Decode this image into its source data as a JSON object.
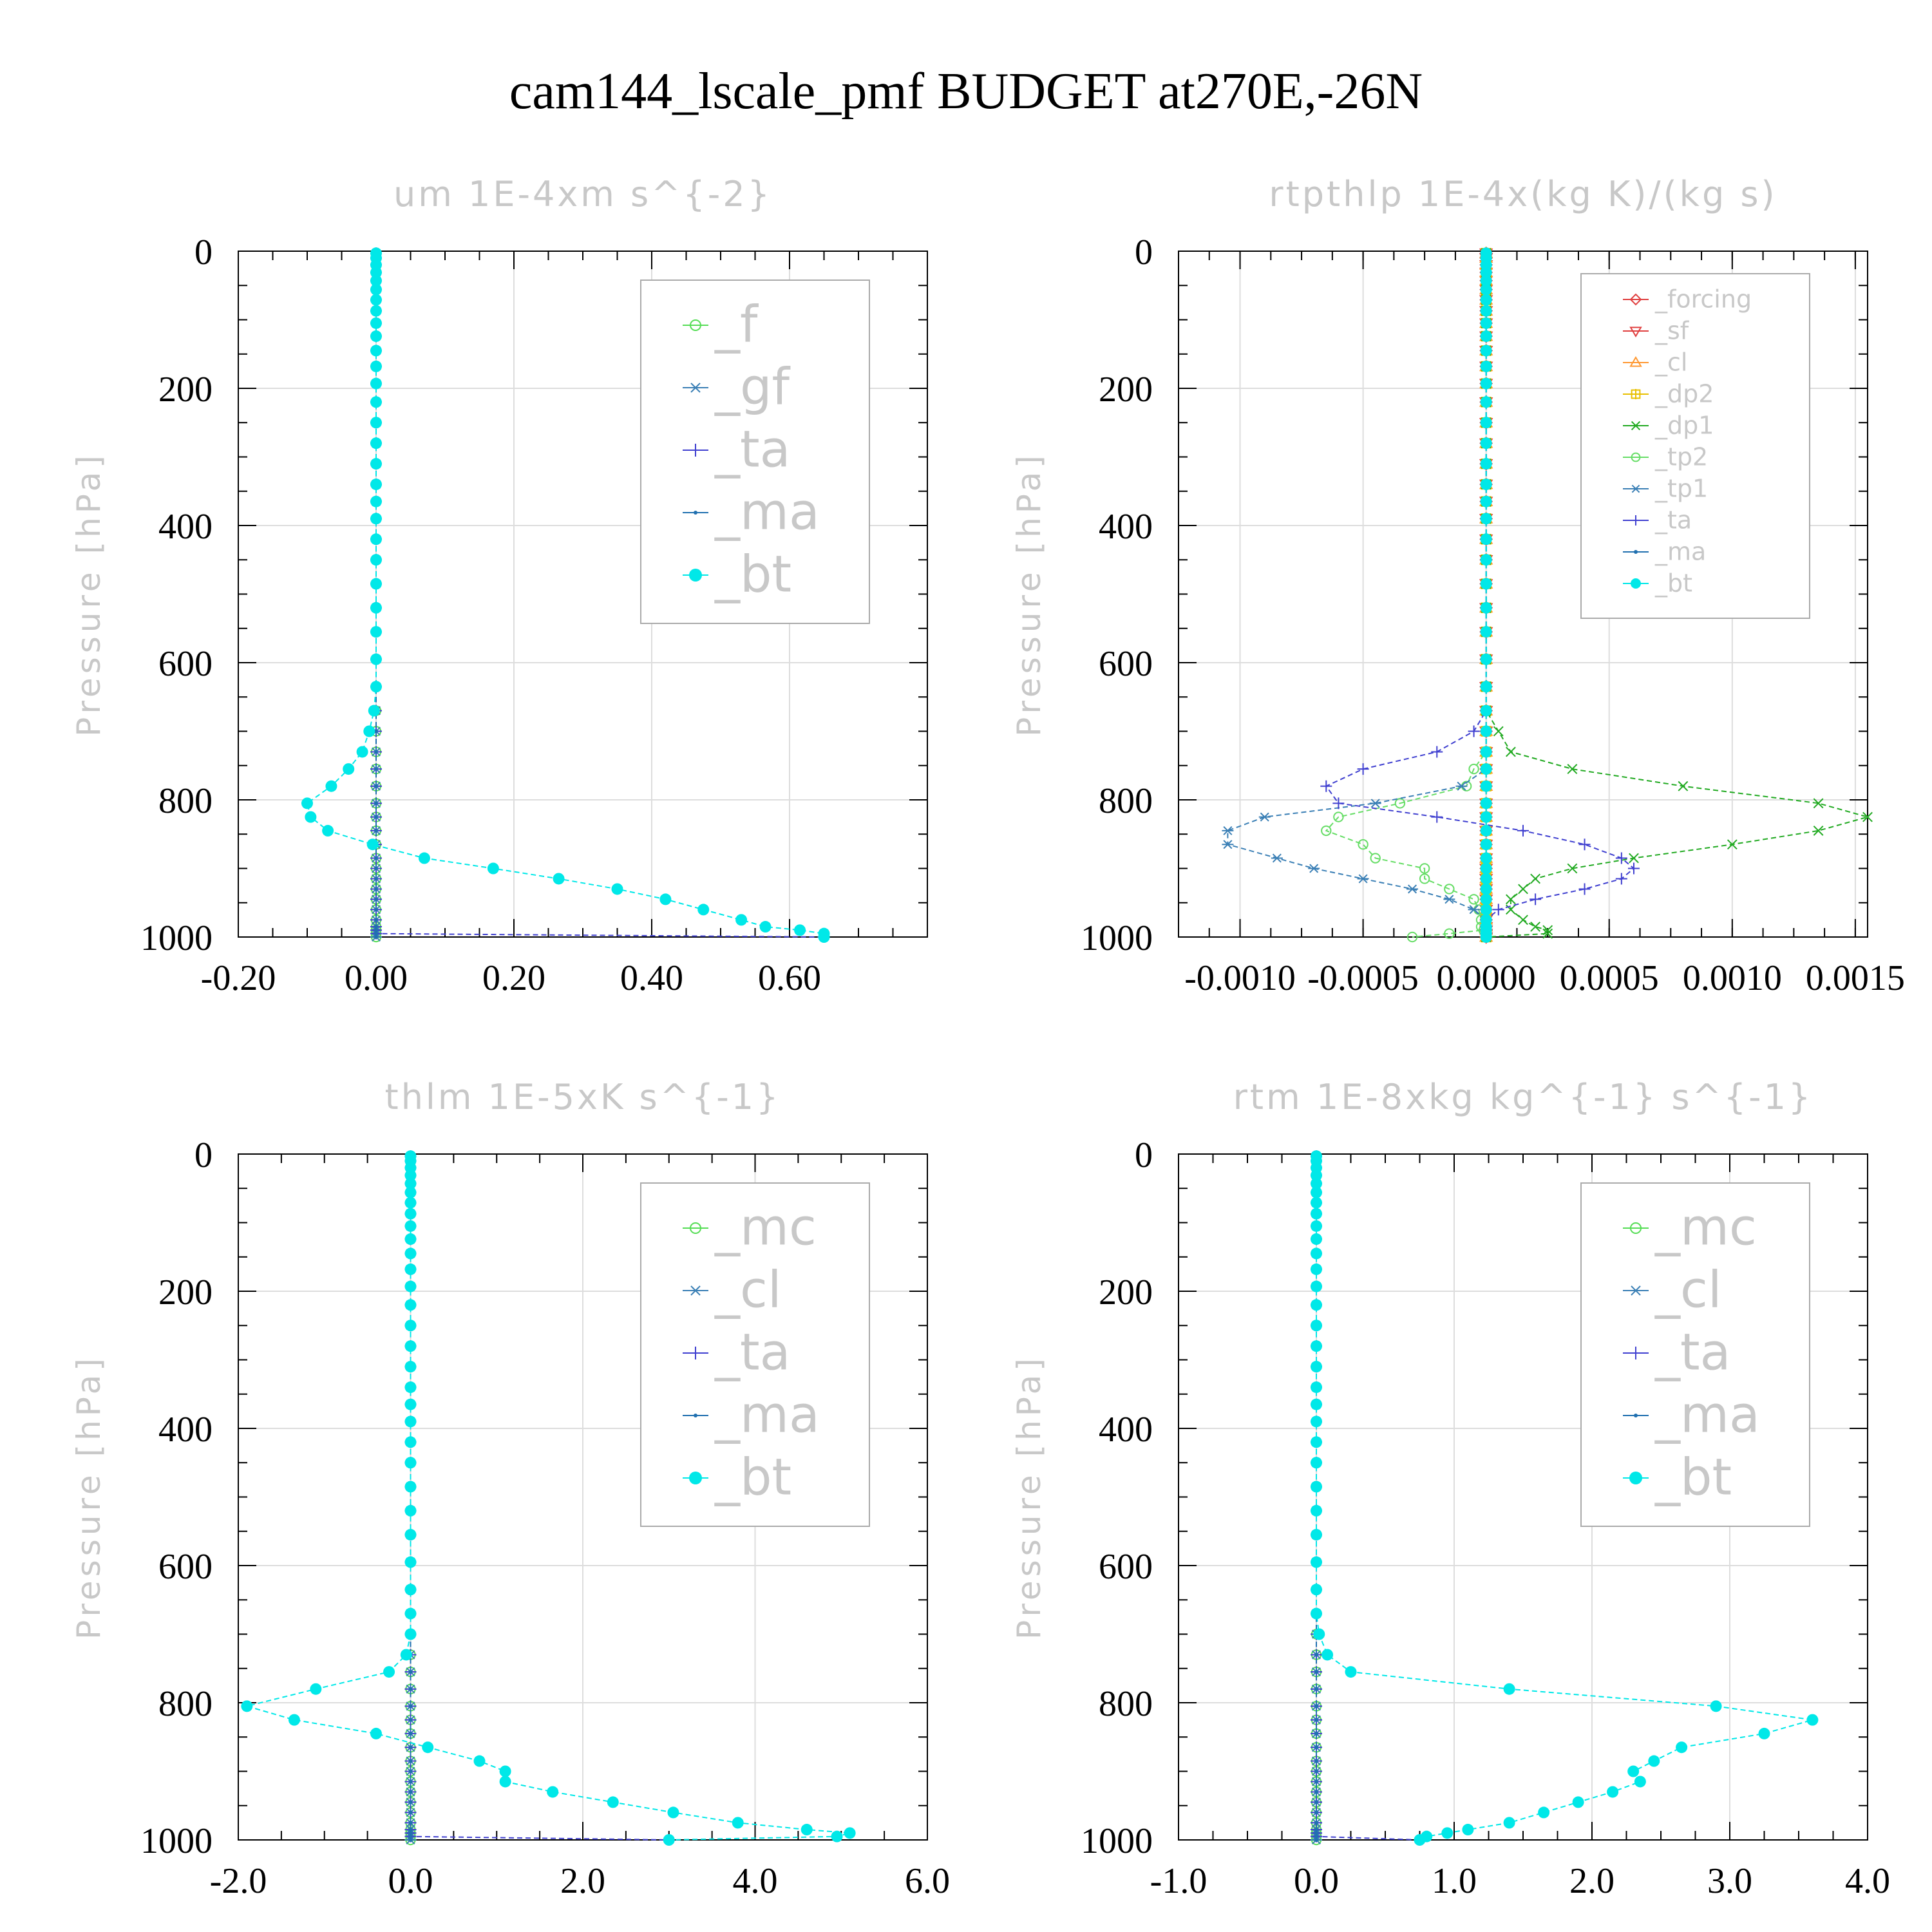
{
  "suptitle": "cam144_lscale_pmf  BUDGET at270E,-26N",
  "chart_data": [
    {
      "type": "line",
      "title": "um  1E-4xm s^{-2}",
      "ylabel": "Pressure [hPa]",
      "xlim": [
        -0.2,
        0.8
      ],
      "ylim": [
        1000,
        0
      ],
      "xticks": [
        -0.2,
        0.0,
        0.2,
        0.4,
        0.6
      ],
      "xtick_labels": [
        "-0.20",
        "0.00",
        "0.20",
        "0.40",
        "0.60"
      ],
      "yticks": [
        0,
        200,
        400,
        600,
        800,
        1000
      ],
      "ytick_labels": [
        "0",
        "200",
        "400",
        "600",
        "800",
        "1000"
      ],
      "grid": true,
      "legend_position": "top-right",
      "legend_size": "large",
      "levels": [
        3,
        10,
        20,
        31,
        43,
        56,
        71,
        87,
        105,
        124,
        145,
        168,
        193,
        220,
        250,
        280,
        310,
        340,
        365,
        390,
        420,
        450,
        485,
        520,
        555,
        595,
        635,
        670,
        700,
        730,
        755,
        780,
        805,
        825,
        845,
        865,
        885,
        900,
        915,
        930,
        945,
        960,
        975,
        985,
        990,
        995,
        1000
      ],
      "series": [
        {
          "name": "_f",
          "color": "#55dd55",
          "marker": "circle-open",
          "values": "zero"
        },
        {
          "name": "_gf",
          "color": "#3a7fb5",
          "marker": "asterisk",
          "values": "zero"
        },
        {
          "name": "_ta",
          "color": "#4040d0",
          "marker": "plus",
          "values": "zero",
          "tail": [
            [
              995,
              0.0
            ],
            [
              1000,
              0.65
            ]
          ]
        },
        {
          "name": "_ma",
          "color": "#2070b0",
          "marker": "dot",
          "values": "zero"
        },
        {
          "name": "_bt",
          "color": "#00e8e8",
          "marker": "filled-circle",
          "values": "zero",
          "profile": [
            [
              635,
              0.0
            ],
            [
              670,
              -0.003
            ],
            [
              700,
              -0.01
            ],
            [
              730,
              -0.02
            ],
            [
              755,
              -0.04
            ],
            [
              780,
              -0.065
            ],
            [
              805,
              -0.1
            ],
            [
              825,
              -0.095
            ],
            [
              845,
              -0.07
            ],
            [
              865,
              -0.005
            ],
            [
              885,
              0.07
            ],
            [
              900,
              0.17
            ],
            [
              915,
              0.265
            ],
            [
              930,
              0.35
            ],
            [
              945,
              0.42
            ],
            [
              960,
              0.475
            ],
            [
              975,
              0.53
            ],
            [
              985,
              0.565
            ],
            [
              990,
              0.615
            ],
            [
              995,
              0.65
            ],
            [
              1000,
              0.65
            ]
          ]
        }
      ]
    },
    {
      "type": "line",
      "title": "rtpthlp  1E-4x(kg K)/(kg s)",
      "ylabel": "Pressure [hPa]",
      "xlim": [
        -0.00125,
        0.00155
      ],
      "ylim": [
        1000,
        0
      ],
      "xticks": [
        -0.001,
        -0.0005,
        0.0,
        0.0005,
        0.001,
        0.0015
      ],
      "xtick_labels": [
        "-0.0010",
        "-0.0005",
        "0.0000",
        "0.0005",
        "0.0010",
        "0.0015"
      ],
      "yticks": [
        0,
        200,
        400,
        600,
        800,
        1000
      ],
      "ytick_labels": [
        "0",
        "200",
        "400",
        "600",
        "800",
        "1000"
      ],
      "grid": true,
      "legend_position": "top-right",
      "legend_size": "small",
      "series": [
        {
          "name": "_forcing",
          "color": "#e04040",
          "marker": "diamond-open",
          "values": "zero"
        },
        {
          "name": "_sf",
          "color": "#e04040",
          "marker": "triangle-down-open",
          "values": "zero"
        },
        {
          "name": "_cl",
          "color": "#ff9933",
          "marker": "triangle-open",
          "values": "zero"
        },
        {
          "name": "_dp2",
          "color": "#e8c000",
          "marker": "square-plus",
          "values": "zero"
        },
        {
          "name": "_dp1",
          "color": "#22aa22",
          "marker": "cross",
          "profile": [
            [
              670,
              0.0
            ],
            [
              700,
              5e-05
            ],
            [
              730,
              0.0001
            ],
            [
              755,
              0.00035
            ],
            [
              780,
              0.0008
            ],
            [
              805,
              0.00135
            ],
            [
              825,
              0.00155
            ],
            [
              845,
              0.00135
            ],
            [
              865,
              0.001
            ],
            [
              885,
              0.0006
            ],
            [
              900,
              0.00035
            ],
            [
              915,
              0.0002
            ],
            [
              930,
              0.00015
            ],
            [
              945,
              0.0001
            ],
            [
              960,
              0.0001
            ],
            [
              975,
              0.00015
            ],
            [
              985,
              0.0002
            ],
            [
              990,
              0.00025
            ],
            [
              995,
              0.00025
            ],
            [
              1000,
              0.0
            ]
          ]
        },
        {
          "name": "_tp2",
          "color": "#66dd66",
          "marker": "circle-open",
          "profile": [
            [
              730,
              0.0
            ],
            [
              755,
              -5e-05
            ],
            [
              780,
              -8e-05
            ],
            [
              805,
              -0.00035
            ],
            [
              825,
              -0.0006
            ],
            [
              845,
              -0.00065
            ],
            [
              865,
              -0.0005
            ],
            [
              885,
              -0.00045
            ],
            [
              900,
              -0.00025
            ],
            [
              915,
              -0.00025
            ],
            [
              930,
              -0.00015
            ],
            [
              945,
              -5e-05
            ],
            [
              960,
              -3e-05
            ],
            [
              975,
              -2e-05
            ],
            [
              985,
              -2e-05
            ],
            [
              990,
              -1e-05
            ],
            [
              995,
              -0.00015
            ],
            [
              1000,
              -0.0003
            ]
          ]
        },
        {
          "name": "_tp1",
          "color": "#3a7fb5",
          "marker": "asterisk",
          "profile": [
            [
              755,
              0.0
            ],
            [
              780,
              -0.0001
            ],
            [
              805,
              -0.00045
            ],
            [
              825,
              -0.0009
            ],
            [
              845,
              -0.00105
            ],
            [
              865,
              -0.00105
            ],
            [
              885,
              -0.00085
            ],
            [
              900,
              -0.0007
            ],
            [
              915,
              -0.0005
            ],
            [
              930,
              -0.0003
            ],
            [
              945,
              -0.00015
            ],
            [
              960,
              -5e-05
            ],
            [
              975,
              0.0
            ],
            [
              985,
              0.0
            ],
            [
              990,
              0.0
            ],
            [
              995,
              0.0
            ],
            [
              1000,
              0.0
            ]
          ]
        },
        {
          "name": "_ta",
          "color": "#4040d0",
          "marker": "plus",
          "profile": [
            [
              680,
              0.0
            ],
            [
              700,
              -5e-05
            ],
            [
              730,
              -0.0002
            ],
            [
              755,
              -0.0005
            ],
            [
              780,
              -0.00065
            ],
            [
              805,
              -0.0006
            ],
            [
              825,
              -0.0002
            ],
            [
              845,
              0.00015
            ],
            [
              865,
              0.0004
            ],
            [
              885,
              0.00055
            ],
            [
              900,
              0.0006
            ],
            [
              915,
              0.00055
            ],
            [
              930,
              0.0004
            ],
            [
              945,
              0.0002
            ],
            [
              960,
              5e-05
            ],
            [
              975,
              0.0
            ],
            [
              1000,
              0.0
            ]
          ]
        },
        {
          "name": "_ma",
          "color": "#2070b0",
          "marker": "dot",
          "values": "zero"
        },
        {
          "name": "_bt",
          "color": "#00e8e8",
          "marker": "filled-circle",
          "values": "zero"
        }
      ]
    },
    {
      "type": "line",
      "title": "thlm  1E-5xK s^{-1}",
      "ylabel": "Pressure [hPa]",
      "xlim": [
        -2.0,
        6.0
      ],
      "ylim": [
        1000,
        0
      ],
      "xticks": [
        -2.0,
        0.0,
        2.0,
        4.0,
        6.0
      ],
      "xtick_labels": [
        "-2.0",
        "0.0",
        "2.0",
        "4.0",
        "6.0"
      ],
      "yticks": [
        0,
        200,
        400,
        600,
        800,
        1000
      ],
      "ytick_labels": [
        "0",
        "200",
        "400",
        "600",
        "800",
        "1000"
      ],
      "grid": true,
      "legend_position": "top-right",
      "legend_size": "large",
      "series": [
        {
          "name": "_mc",
          "color": "#55dd55",
          "marker": "circle-open",
          "values": "zero"
        },
        {
          "name": "_cl",
          "color": "#3a7fb5",
          "marker": "asterisk",
          "values": "zero"
        },
        {
          "name": "_ta",
          "color": "#4040d0",
          "marker": "plus",
          "values": "zero",
          "tail": [
            [
              995,
              0.0
            ],
            [
              1000,
              3.0
            ]
          ]
        },
        {
          "name": "_ma",
          "color": "#2070b0",
          "marker": "dot",
          "values": "zero"
        },
        {
          "name": "_bt",
          "color": "#00e8e8",
          "marker": "filled-circle",
          "values": "zero",
          "profile": [
            [
              700,
              0.0
            ],
            [
              730,
              -0.05
            ],
            [
              755,
              -0.25
            ],
            [
              780,
              -1.1
            ],
            [
              805,
              -1.9
            ],
            [
              825,
              -1.35
            ],
            [
              845,
              -0.4
            ],
            [
              865,
              0.2
            ],
            [
              885,
              0.8
            ],
            [
              900,
              1.1
            ],
            [
              915,
              1.1
            ],
            [
              930,
              1.65
            ],
            [
              945,
              2.35
            ],
            [
              960,
              3.05
            ],
            [
              975,
              3.8
            ],
            [
              985,
              4.6
            ],
            [
              990,
              5.1
            ],
            [
              995,
              4.95
            ],
            [
              1000,
              3.0
            ]
          ]
        }
      ]
    },
    {
      "type": "line",
      "title": "rtm  1E-8xkg kg^{-1} s^{-1}",
      "ylabel": "Pressure [hPa]",
      "xlim": [
        -1.0,
        4.0
      ],
      "ylim": [
        1000,
        0
      ],
      "xticks": [
        -1.0,
        0.0,
        1.0,
        2.0,
        3.0,
        4.0
      ],
      "xtick_labels": [
        "-1.0",
        "0.0",
        "1.0",
        "2.0",
        "3.0",
        "4.0"
      ],
      "yticks": [
        0,
        200,
        400,
        600,
        800,
        1000
      ],
      "ytick_labels": [
        "0",
        "200",
        "400",
        "600",
        "800",
        "1000"
      ],
      "grid": true,
      "legend_position": "top-right",
      "legend_size": "large",
      "series": [
        {
          "name": "_mc",
          "color": "#55dd55",
          "marker": "circle-open",
          "values": "zero"
        },
        {
          "name": "_cl",
          "color": "#3a7fb5",
          "marker": "asterisk",
          "values": "zero"
        },
        {
          "name": "_ta",
          "color": "#4040d0",
          "marker": "plus",
          "values": "zero",
          "tail": [
            [
              995,
              0.0
            ],
            [
              1000,
              0.75
            ]
          ]
        },
        {
          "name": "_ma",
          "color": "#2070b0",
          "marker": "dot",
          "values": "zero"
        },
        {
          "name": "_bt",
          "color": "#00e8e8",
          "marker": "filled-circle",
          "values": "zero",
          "profile": [
            [
              670,
              0.0
            ],
            [
              700,
              0.02
            ],
            [
              730,
              0.08
            ],
            [
              755,
              0.25
            ],
            [
              780,
              1.4
            ],
            [
              805,
              2.9
            ],
            [
              825,
              3.6
            ],
            [
              845,
              3.25
            ],
            [
              865,
              2.65
            ],
            [
              885,
              2.45
            ],
            [
              900,
              2.3
            ],
            [
              915,
              2.35
            ],
            [
              930,
              2.15
            ],
            [
              945,
              1.9
            ],
            [
              960,
              1.65
            ],
            [
              975,
              1.4
            ],
            [
              985,
              1.1
            ],
            [
              990,
              0.95
            ],
            [
              995,
              0.8
            ],
            [
              1000,
              0.75
            ]
          ]
        }
      ]
    }
  ]
}
